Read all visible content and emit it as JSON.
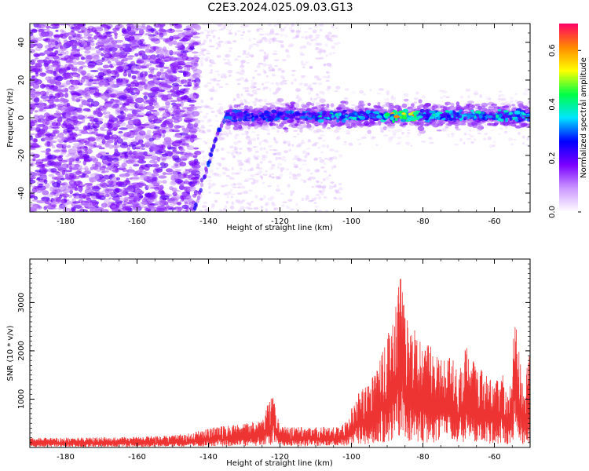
{
  "title": "C2E3.2024.025.09.03.G13",
  "colors": {
    "snr_line": "#ee3333",
    "colormap_stops": [
      "#ffffff",
      "#cc99ff",
      "#7a00ff",
      "#0000ff",
      "#00e5ff",
      "#00ff44",
      "#ffff00",
      "#ff8800",
      "#ff0066"
    ]
  },
  "chart_data": [
    {
      "type": "heatmap",
      "xlabel": "Height of straight line (km)",
      "ylabel": "Frequency (Hz)",
      "xlim": [
        -190,
        -50
      ],
      "ylim": [
        -50,
        50
      ],
      "x_ticks": [
        -180,
        -160,
        -140,
        -120,
        -100,
        -80,
        -60
      ],
      "y_ticks": [
        -40,
        -20,
        0,
        20,
        40
      ],
      "colorbar": {
        "label": "Normalized spectral amplitude",
        "range": [
          0.0,
          0.7
        ],
        "ticks": [
          0.0,
          0.2,
          0.4,
          0.6
        ],
        "tick_labels": [
          "0.0",
          "0.2",
          "0.4",
          "0.6"
        ]
      },
      "features": {
        "noise_region_x": [
          -190,
          -143
        ],
        "sweep_points": [
          [
            -144,
            -50
          ],
          [
            -141,
            -30
          ],
          [
            -139,
            -18
          ],
          [
            -137,
            -6
          ],
          [
            -135,
            0
          ]
        ],
        "signal_band_center_hz": 1,
        "signal_band_x": [
          -135,
          -50
        ],
        "peak_amplitude_at_x": -86
      }
    },
    {
      "type": "line",
      "xlabel": "Height of straight line (km)",
      "ylabel": "SNR (10 * v/v)",
      "xlim": [
        -190,
        -50
      ],
      "ylim": [
        0,
        3900
      ],
      "x_ticks": [
        -180,
        -160,
        -140,
        -120,
        -100,
        -80,
        -60
      ],
      "y_ticks": [
        1000,
        2000,
        3000
      ],
      "series": [
        {
          "x": [
            -190,
            -180,
            -170,
            -160,
            -150,
            -145,
            -140,
            -135,
            -130,
            -125,
            -122,
            -120,
            -115,
            -110,
            -105,
            -102,
            -100,
            -98,
            -95,
            -92,
            -90,
            -88,
            -86,
            -84,
            -82,
            -80,
            -78,
            -75,
            -72,
            -70,
            -68,
            -65,
            -62,
            -60,
            -58,
            -56,
            -54,
            -52,
            -50
          ],
          "y": [
            200,
            200,
            210,
            220,
            260,
            290,
            400,
            450,
            500,
            550,
            1200,
            450,
            420,
            430,
            430,
            500,
            800,
            1200,
            1300,
            1800,
            2300,
            2700,
            3850,
            2400,
            2600,
            2000,
            2200,
            1800,
            1900,
            1500,
            2100,
            1700,
            1500,
            1300,
            1600,
            1000,
            2900,
            1200,
            2000
          ]
        }
      ]
    }
  ]
}
